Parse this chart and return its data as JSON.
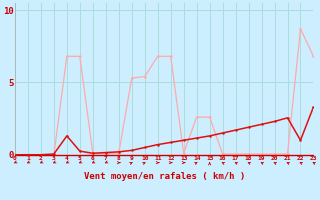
{
  "xlabel": "Vent moyen/en rafales ( km/h )",
  "background_color": "#cceeff",
  "grid_color": "#aadddd",
  "x_labels": [
    "0",
    "1",
    "2",
    "3",
    "4",
    "5",
    "6",
    "7",
    "8",
    "9",
    "10",
    "11",
    "12",
    "13",
    "14",
    "15",
    "16",
    "17",
    "18",
    "19",
    "20",
    "21",
    "22",
    "23"
  ],
  "yticks": [
    0,
    5,
    10
  ],
  "xlim": [
    0,
    23
  ],
  "ylim": [
    0,
    10.5
  ],
  "line_mean_x": [
    0,
    1,
    2,
    3,
    4,
    5,
    6,
    7,
    8,
    9,
    10,
    11,
    12,
    13,
    14,
    15,
    16,
    17,
    18,
    19,
    20,
    21,
    22,
    23
  ],
  "line_mean_y": [
    0.0,
    0.0,
    0.0,
    0.05,
    1.3,
    0.25,
    0.1,
    0.15,
    0.2,
    0.3,
    0.5,
    0.7,
    0.85,
    1.0,
    1.15,
    1.3,
    1.5,
    1.7,
    1.9,
    2.1,
    2.3,
    2.55,
    1.0,
    3.3
  ],
  "line_gust_x": [
    0,
    1,
    2,
    3,
    4,
    5,
    6,
    7,
    8,
    9,
    10,
    11,
    12,
    13,
    14,
    15,
    16,
    17,
    18,
    19,
    20,
    21,
    22,
    23
  ],
  "line_gust_y": [
    0.0,
    0.0,
    0.0,
    0.0,
    6.8,
    6.8,
    0.1,
    0.1,
    0.1,
    5.3,
    5.4,
    6.8,
    6.8,
    0.1,
    2.6,
    2.6,
    0.05,
    0.05,
    0.05,
    0.05,
    0.05,
    0.05,
    8.7,
    6.8
  ],
  "line_mean_color": "#dd1111",
  "line_gust_color": "#ffaaaa",
  "arrow_colors": "#dd1111"
}
